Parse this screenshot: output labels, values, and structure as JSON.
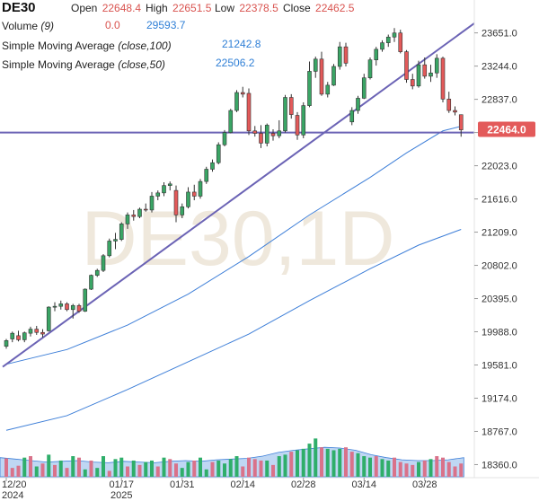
{
  "header": {
    "symbol": "DE30",
    "open_label": "Open",
    "open_value": "22648.4",
    "high_label": "High",
    "high_value": "22651.5",
    "low_label": "Low",
    "low_value": "22378.5",
    "close_label": "Close",
    "close_value": "22462.5",
    "volume_label": "Volume",
    "volume_param": "(9)",
    "volume_value": "0.0",
    "volume_ma_value": "29593.7",
    "sma100_label": "Simple Moving Average",
    "sma100_param": "(close,100)",
    "sma100_value": "21242.8",
    "sma50_label": "Simple Moving Average",
    "sma50_param": "(close,50)",
    "sma50_value": "22506.2"
  },
  "watermark": "DE30,1D",
  "price_tag": "22464.0",
  "colors": {
    "up": "#3aa565",
    "down": "#e35a5a",
    "trendline": "#6b63b5",
    "ma": "#3e7fd8",
    "volume_up": "#2fae6a",
    "volume_down": "#d9728a",
    "volume_ma_fill": "#a9c9ef",
    "tag": "#e35a5a"
  },
  "chart_data": {
    "type": "candlestick",
    "symbol": "DE30",
    "timeframe": "1D",
    "ylim": [
      18200,
      23900
    ],
    "y_ticks": [
      18360.0,
      18767.0,
      19174.0,
      19581.0,
      19988.0,
      20395.0,
      20802.0,
      21209.0,
      21616.0,
      22023.0,
      22430.0,
      22837.0,
      23244.0,
      23651.0
    ],
    "y_tick_labels": [
      "18360.0",
      "18767.0",
      "19174.0",
      "19581.0",
      "19988.0",
      "20395.0",
      "20802.0",
      "21209.0",
      "21616.0",
      "22023.0",
      "22430.0",
      "22837.0",
      "23244.0",
      "23651.0"
    ],
    "x_tick_labels": [
      {
        "label": "12/20",
        "sublabel": "2024",
        "bar": 0
      },
      {
        "label": "01/17",
        "sublabel": "2025",
        "bar": 19
      },
      {
        "label": "01/31",
        "sublabel": "",
        "bar": 29
      },
      {
        "label": "02/14",
        "sublabel": "",
        "bar": 39
      },
      {
        "label": "02/28",
        "sublabel": "",
        "bar": 49
      },
      {
        "label": "03/14",
        "sublabel": "",
        "bar": 59
      },
      {
        "label": "03/28",
        "sublabel": "",
        "bar": 69
      }
    ],
    "current_price": 22464.0,
    "ohlc": [
      [
        19810,
        19900,
        19780,
        19880
      ],
      [
        19900,
        19990,
        19860,
        19970
      ],
      [
        19940,
        20000,
        19870,
        19890
      ],
      [
        19890,
        19990,
        19860,
        19975
      ],
      [
        19970,
        20050,
        19930,
        20020
      ],
      [
        20020,
        20060,
        19950,
        19980
      ],
      [
        19980,
        20020,
        19920,
        19960
      ],
      [
        20000,
        20300,
        19990,
        20290
      ],
      [
        20290,
        20350,
        20240,
        20300
      ],
      [
        20300,
        20370,
        20260,
        20330
      ],
      [
        20330,
        20350,
        20240,
        20260
      ],
      [
        20260,
        20330,
        20150,
        20310
      ],
      [
        20310,
        20330,
        20220,
        20240
      ],
      [
        20240,
        20520,
        20230,
        20510
      ],
      [
        20510,
        20690,
        20500,
        20680
      ],
      [
        20680,
        20760,
        20660,
        20740
      ],
      [
        20740,
        20940,
        20720,
        20920
      ],
      [
        20920,
        21130,
        20900,
        21100
      ],
      [
        21100,
        21200,
        21000,
        21120
      ],
      [
        21120,
        21330,
        21100,
        21310
      ],
      [
        21310,
        21450,
        21250,
        21420
      ],
      [
        21420,
        21480,
        21350,
        21400
      ],
      [
        21400,
        21510,
        21380,
        21490
      ],
      [
        21490,
        21560,
        21460,
        21480
      ],
      [
        21480,
        21700,
        21450,
        21650
      ],
      [
        21650,
        21720,
        21600,
        21690
      ],
      [
        21690,
        21820,
        21650,
        21780
      ],
      [
        21780,
        21830,
        21720,
        21800
      ],
      [
        21720,
        21780,
        21330,
        21420
      ],
      [
        21420,
        21560,
        21380,
        21520
      ],
      [
        21520,
        21760,
        21500,
        21700
      ],
      [
        21700,
        21790,
        21600,
        21650
      ],
      [
        21650,
        21860,
        21620,
        21830
      ],
      [
        21830,
        22010,
        21800,
        21980
      ],
      [
        21980,
        22100,
        21950,
        22060
      ],
      [
        22060,
        22310,
        22040,
        22280
      ],
      [
        22280,
        22460,
        22260,
        22430
      ],
      [
        22430,
        22720,
        22420,
        22700
      ],
      [
        22700,
        22950,
        22680,
        22920
      ],
      [
        22920,
        22990,
        22860,
        22900
      ],
      [
        22910,
        22970,
        22400,
        22450
      ],
      [
        22450,
        22510,
        22380,
        22420
      ],
      [
        22420,
        22520,
        22240,
        22300
      ],
      [
        22300,
        22540,
        22260,
        22520
      ],
      [
        22420,
        22470,
        22330,
        22390
      ],
      [
        22390,
        22580,
        22360,
        22450
      ],
      [
        22450,
        22890,
        22430,
        22860
      ],
      [
        22860,
        22900,
        22600,
        22650
      ],
      [
        22640,
        22680,
        22340,
        22400
      ],
      [
        22400,
        22800,
        22360,
        22760
      ],
      [
        22760,
        23300,
        22740,
        23180
      ],
      [
        23180,
        23360,
        23100,
        23330
      ],
      [
        23330,
        23420,
        22880,
        22900
      ],
      [
        22900,
        23050,
        22860,
        23010
      ],
      [
        23010,
        23270,
        23000,
        23240
      ],
      [
        23240,
        23540,
        23200,
        23480
      ],
      [
        23480,
        23530,
        23240,
        23280
      ],
      [
        22560,
        22740,
        22520,
        22700
      ],
      [
        22700,
        22880,
        22660,
        22850
      ],
      [
        22850,
        23150,
        22840,
        23100
      ],
      [
        23100,
        23350,
        23080,
        23320
      ],
      [
        23320,
        23480,
        23250,
        23450
      ],
      [
        23450,
        23560,
        23420,
        23530
      ],
      [
        23530,
        23630,
        23480,
        23600
      ],
      [
        23600,
        23710,
        23540,
        23650
      ],
      [
        23650,
        23690,
        23400,
        23420
      ],
      [
        23420,
        23440,
        23040,
        23080
      ],
      [
        23080,
        23150,
        22960,
        23000
      ],
      [
        23000,
        23310,
        22980,
        23260
      ],
      [
        23260,
        23350,
        23090,
        23120
      ],
      [
        23120,
        23260,
        23050,
        23160
      ],
      [
        23160,
        23390,
        23100,
        23340
      ],
      [
        23340,
        23360,
        22800,
        22840
      ],
      [
        22840,
        22930,
        22670,
        22700
      ],
      [
        22700,
        22750,
        22640,
        22680
      ],
      [
        22648.4,
        22651.5,
        22378.5,
        22462.5
      ]
    ],
    "sma50": [
      [
        0,
        19590
      ],
      [
        10,
        19770
      ],
      [
        20,
        20070
      ],
      [
        30,
        20450
      ],
      [
        40,
        20910
      ],
      [
        50,
        21420
      ],
      [
        60,
        21880
      ],
      [
        66,
        22180
      ],
      [
        72,
        22450
      ],
      [
        75,
        22506.2
      ]
    ],
    "sma100": [
      [
        0,
        18780
      ],
      [
        10,
        18960
      ],
      [
        20,
        19280
      ],
      [
        30,
        19620
      ],
      [
        40,
        19960
      ],
      [
        50,
        20370
      ],
      [
        60,
        20760
      ],
      [
        68,
        21050
      ],
      [
        75,
        21242.8
      ]
    ],
    "trendlines": [
      {
        "from": [
          0,
          19590
        ],
        "to": [
          75,
          23650
        ]
      },
      {
        "from": [
          0,
          22430
        ],
        "to": [
          75,
          22430
        ]
      }
    ],
    "volume": [
      [
        25,
        0
      ],
      [
        12,
        0
      ],
      [
        15,
        0
      ],
      [
        26,
        1
      ],
      [
        28,
        0
      ],
      [
        14,
        1
      ],
      [
        18,
        0
      ],
      [
        30,
        1
      ],
      [
        16,
        0
      ],
      [
        22,
        1
      ],
      [
        12,
        0
      ],
      [
        28,
        1
      ],
      [
        26,
        0
      ],
      [
        10,
        1
      ],
      [
        22,
        0
      ],
      [
        12,
        1
      ],
      [
        28,
        1
      ],
      [
        8,
        0
      ],
      [
        24,
        1
      ],
      [
        26,
        1
      ],
      [
        14,
        0
      ],
      [
        22,
        1
      ],
      [
        16,
        0
      ],
      [
        20,
        1
      ],
      [
        22,
        1
      ],
      [
        14,
        0
      ],
      [
        26,
        1
      ],
      [
        24,
        0
      ],
      [
        18,
        0
      ],
      [
        12,
        1
      ],
      [
        20,
        1
      ],
      [
        22,
        0
      ],
      [
        26,
        1
      ],
      [
        10,
        1
      ],
      [
        20,
        0
      ],
      [
        22,
        1
      ],
      [
        18,
        1
      ],
      [
        24,
        1
      ],
      [
        28,
        1
      ],
      [
        14,
        0
      ],
      [
        26,
        0
      ],
      [
        24,
        0
      ],
      [
        22,
        0
      ],
      [
        22,
        1
      ],
      [
        16,
        0
      ],
      [
        28,
        1
      ],
      [
        30,
        1
      ],
      [
        34,
        0
      ],
      [
        36,
        1
      ],
      [
        38,
        1
      ],
      [
        45,
        1
      ],
      [
        52,
        1
      ],
      [
        40,
        0
      ],
      [
        38,
        1
      ],
      [
        36,
        1
      ],
      [
        38,
        1
      ],
      [
        40,
        0
      ],
      [
        34,
        0
      ],
      [
        32,
        1
      ],
      [
        28,
        1
      ],
      [
        26,
        1
      ],
      [
        28,
        0
      ],
      [
        24,
        1
      ],
      [
        22,
        1
      ],
      [
        26,
        0
      ],
      [
        20,
        0
      ],
      [
        18,
        0
      ],
      [
        16,
        0
      ],
      [
        20,
        1
      ],
      [
        22,
        0
      ],
      [
        24,
        1
      ],
      [
        28,
        0
      ],
      [
        26,
        0
      ],
      [
        20,
        0
      ],
      [
        14,
        0
      ],
      [
        18,
        0
      ]
    ],
    "volume_ma": [
      26,
      24,
      22,
      20,
      21,
      22,
      20,
      19,
      21,
      20,
      19,
      21,
      22,
      21,
      23,
      24,
      25,
      28,
      33,
      36,
      38,
      40,
      39,
      36,
      30,
      26,
      23,
      22,
      22,
      23,
      26
    ]
  }
}
